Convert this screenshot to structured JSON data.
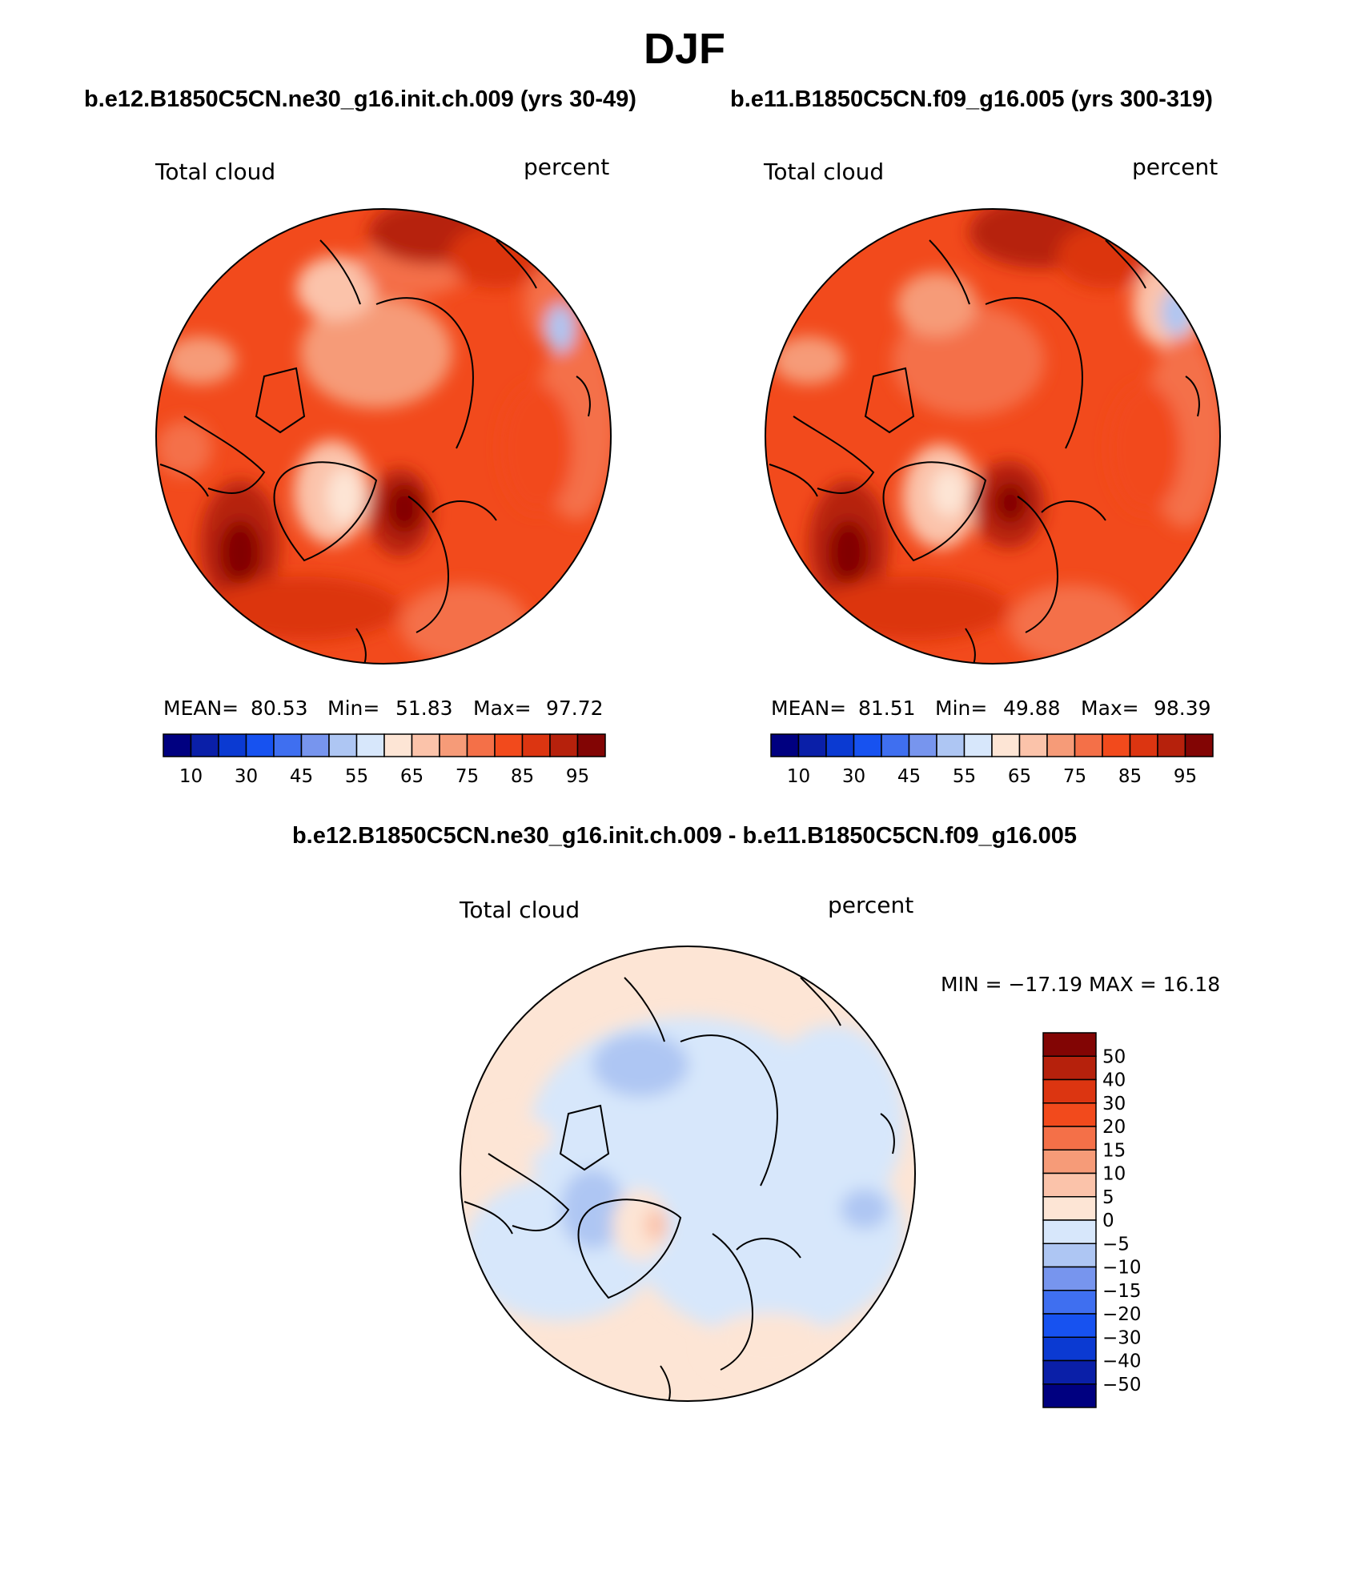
{
  "page": {
    "title": "DJF",
    "case_a": "b.e12.B1850C5CN.ne30_g16.init.ch.009 (yrs 30-49)",
    "case_b": "b.e11.B1850C5CN.f09_g16.005 (yrs 300-319)",
    "diff_title": "b.e12.B1850C5CN.ne30_g16.init.ch.009 - b.e11.B1850C5CN.f09_g16.005"
  },
  "panels": [
    {
      "variable": "Total cloud",
      "units": "percent",
      "stats": {
        "mean_label": "MEAN=",
        "mean": "80.53",
        "min_label": "Min=",
        "min": "51.83",
        "max_label": "Max=",
        "max": "97.72"
      },
      "field_mean": 80.53
    },
    {
      "variable": "Total cloud",
      "units": "percent",
      "stats": {
        "mean_label": "MEAN=",
        "mean": "81.51",
        "min_label": "Min=",
        "min": "49.88",
        "max_label": "Max=",
        "max": "98.39"
      },
      "field_mean": 81.51
    }
  ],
  "diff_panel": {
    "variable": "Total cloud",
    "units": "percent",
    "minmax": "MIN = −17.19 MAX =   16.18"
  },
  "colorbar_abs": {
    "colors": [
      "#000080",
      "#0a1fa8",
      "#0b3ad2",
      "#1752f0",
      "#3f6ff0",
      "#7795ee",
      "#aec6f3",
      "#d7e7fb",
      "#fde5d5",
      "#fbc3aa",
      "#f69b78",
      "#f47048",
      "#f24a1c",
      "#dc3511",
      "#b6210c",
      "#820504"
    ],
    "labels": [
      "10",
      "30",
      "45",
      "55",
      "65",
      "75",
      "85",
      "95"
    ]
  },
  "colorbar_diff": {
    "colors": [
      "#820504",
      "#b6210c",
      "#dc3511",
      "#f24a1c",
      "#f47048",
      "#f69b78",
      "#fbc3aa",
      "#fde5d5",
      "#d7e7fb",
      "#aec6f3",
      "#7795ee",
      "#3f6ff0",
      "#1752f0",
      "#0b3ad2",
      "#0a1fa8",
      "#000080"
    ],
    "labels": [
      "50",
      "40",
      "30",
      "20",
      "15",
      "10",
      "5",
      "0",
      "−5",
      "−10",
      "−15",
      "−20",
      "−30",
      "−40",
      "−50"
    ]
  },
  "chart_data": [
    {
      "type": "heatmap",
      "variable": "Total cloud",
      "units": "percent",
      "mean": 80.53,
      "min": 51.83,
      "max": 97.72,
      "contour_levels": [
        10,
        20,
        30,
        40,
        45,
        50,
        55,
        60,
        65,
        70,
        75,
        80,
        85,
        90,
        95
      ],
      "projection": "north polar stereographic"
    },
    {
      "type": "heatmap",
      "variable": "Total cloud",
      "units": "percent",
      "mean": 81.51,
      "min": 49.88,
      "max": 98.39,
      "contour_levels": [
        10,
        20,
        30,
        40,
        45,
        50,
        55,
        60,
        65,
        70,
        75,
        80,
        85,
        90,
        95
      ],
      "projection": "north polar stereographic"
    },
    {
      "type": "heatmap",
      "variable": "Total cloud",
      "units": "percent",
      "min": -17.19,
      "max": 16.18,
      "contour_levels": [
        -50,
        -40,
        -30,
        -20,
        -15,
        -10,
        -5,
        0,
        5,
        10,
        15,
        20,
        30,
        40,
        50
      ],
      "projection": "north polar stereographic"
    }
  ]
}
